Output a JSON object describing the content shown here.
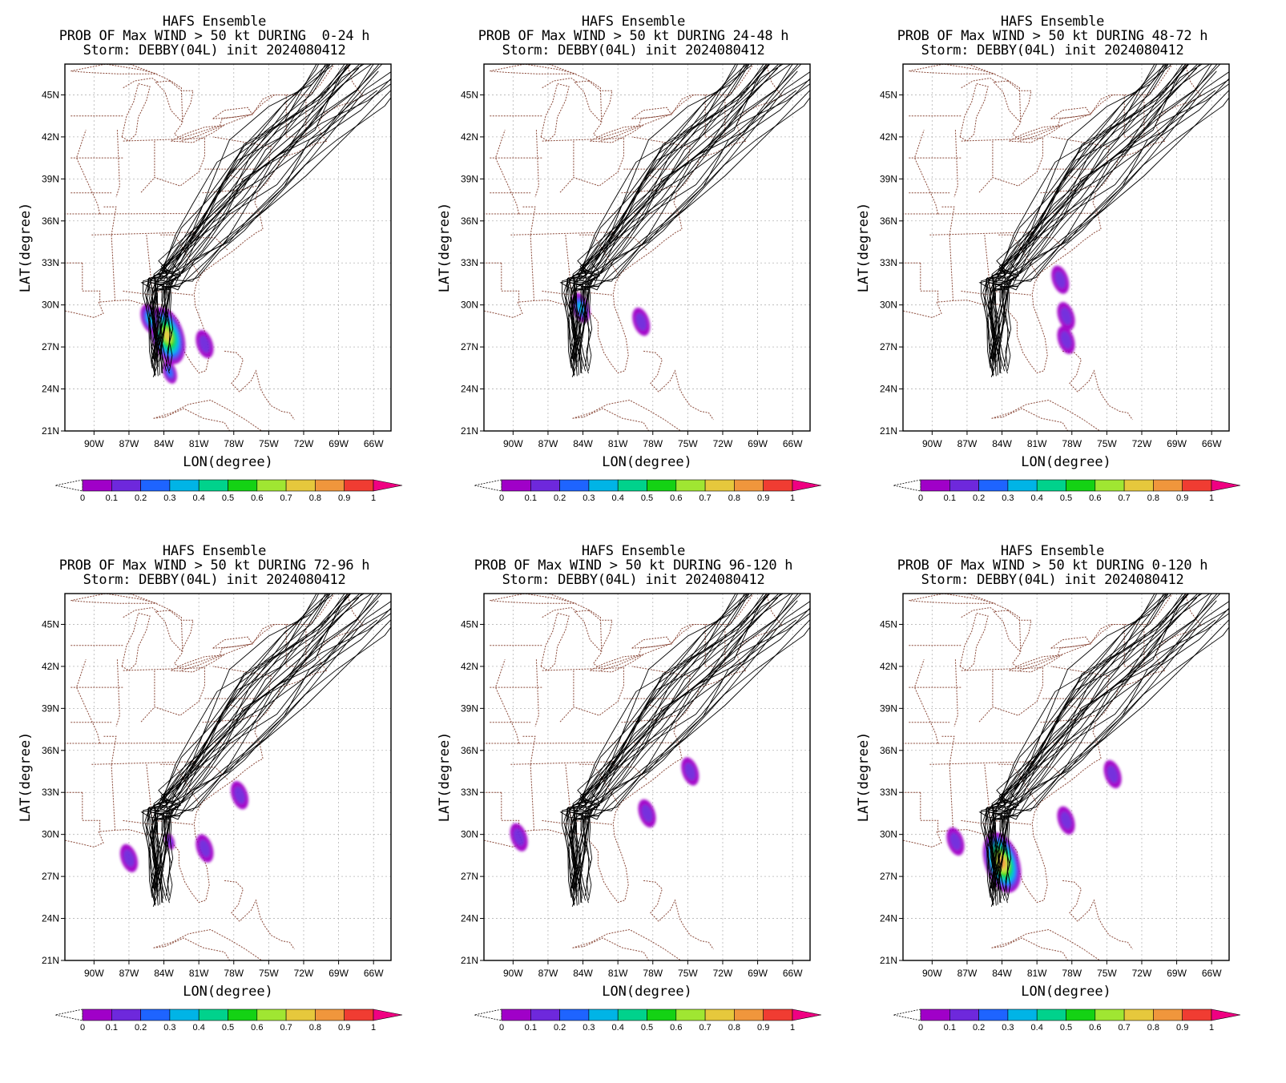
{
  "figure": {
    "xlabel": "LON(degree)",
    "ylabel": "LAT(degree)",
    "lat_labels": [
      "45N",
      "42N",
      "39N",
      "36N",
      "33N",
      "30N",
      "27N",
      "24N",
      "21N"
    ],
    "lon_labels": [
      "90W",
      "87W",
      "84W",
      "81W",
      "78W",
      "75W",
      "72W",
      "69W",
      "66W"
    ],
    "colorbar_ticks": [
      "0",
      "0.1",
      "0.2",
      "0.3",
      "0.4",
      "0.5",
      "0.6",
      "0.7",
      "0.8",
      "0.9",
      "1"
    ],
    "colorbar_colors": [
      "#a000c8",
      "#6e28dc",
      "#1e64ff",
      "#00b4e6",
      "#00d28c",
      "#14d214",
      "#a0e632",
      "#e6c83c",
      "#f0963c",
      "#f03c32",
      "#f00082"
    ]
  },
  "panels": [
    {
      "title1": "HAFS Ensemble",
      "title2": "PROB OF Max WIND > 50 kt DURING  0-24 h",
      "title3": "Storm: DEBBY(04L) init 2024080412"
    },
    {
      "title1": "HAFS Ensemble",
      "title2": "PROB OF Max WIND > 50 kt DURING 24-48 h",
      "title3": "Storm: DEBBY(04L) init 2024080412"
    },
    {
      "title1": "HAFS Ensemble",
      "title2": "PROB OF Max WIND > 50 kt DURING 48-72 h",
      "title3": "Storm: DEBBY(04L) init 2024080412"
    },
    {
      "title1": "HAFS Ensemble",
      "title2": "PROB OF Max WIND > 50 kt DURING 72-96 h",
      "title3": "Storm: DEBBY(04L) init 2024080412"
    },
    {
      "title1": "HAFS Ensemble",
      "title2": "PROB OF Max WIND > 50 kt DURING 96-120 h",
      "title3": "Storm: DEBBY(04L) init 2024080412"
    },
    {
      "title1": "HAFS Ensemble",
      "title2": "PROB OF Max WIND > 50 kt DURING 0-120 h",
      "title3": "Storm: DEBBY(04L) init 2024080412"
    }
  ],
  "chart_data": [
    {
      "type": "heatmap",
      "period": "0-24 h",
      "xlim": [
        -92.5,
        -64.5
      ],
      "ylim": [
        21,
        47.2
      ],
      "colorbar_range": [
        0,
        1
      ],
      "grid": true,
      "prob_areas": [
        {
          "lat": 27.8,
          "lon": -83.7,
          "max_prob": 0.7
        },
        {
          "lat": 29.0,
          "lon": -85.2,
          "max_prob": 0.3
        },
        {
          "lat": 25.2,
          "lon": -83.5,
          "max_prob": 0.2
        },
        {
          "lat": 27.2,
          "lon": -80.5,
          "max_prob": 0.05
        }
      ]
    },
    {
      "type": "heatmap",
      "period": "24-48 h",
      "xlim": [
        -92.5,
        -64.5
      ],
      "ylim": [
        21,
        47.2
      ],
      "colorbar_range": [
        0,
        1
      ],
      "grid": true,
      "prob_areas": [
        {
          "lat": 29.8,
          "lon": -84.2,
          "max_prob": 0.3
        },
        {
          "lat": 28.8,
          "lon": -79.0,
          "max_prob": 0.05
        }
      ]
    },
    {
      "type": "heatmap",
      "period": "48-72 h",
      "xlim": [
        -92.5,
        -64.5
      ],
      "ylim": [
        21,
        47.2
      ],
      "colorbar_range": [
        0,
        1
      ],
      "grid": true,
      "prob_areas": [
        {
          "lat": 31.8,
          "lon": -79.0,
          "max_prob": 0.05
        },
        {
          "lat": 29.2,
          "lon": -78.5,
          "max_prob": 0.05
        },
        {
          "lat": 27.5,
          "lon": -78.5,
          "max_prob": 0.05
        }
      ]
    },
    {
      "type": "heatmap",
      "period": "72-96 h",
      "xlim": [
        -92.5,
        -64.5
      ],
      "ylim": [
        21,
        47.2
      ],
      "colorbar_range": [
        0,
        1
      ],
      "grid": true,
      "prob_areas": [
        {
          "lat": 29.5,
          "lon": -83.5,
          "max_prob": 0.1
        },
        {
          "lat": 32.8,
          "lon": -77.5,
          "max_prob": 0.05
        },
        {
          "lat": 29.0,
          "lon": -80.5,
          "max_prob": 0.05
        },
        {
          "lat": 28.3,
          "lon": -87.0,
          "max_prob": 0.05
        }
      ]
    },
    {
      "type": "heatmap",
      "period": "96-120 h",
      "xlim": [
        -92.5,
        -64.5
      ],
      "ylim": [
        21,
        47.2
      ],
      "colorbar_range": [
        0,
        1
      ],
      "grid": true,
      "prob_areas": [
        {
          "lat": 34.5,
          "lon": -74.8,
          "max_prob": 0.05
        },
        {
          "lat": 31.5,
          "lon": -78.5,
          "max_prob": 0.05
        },
        {
          "lat": 29.8,
          "lon": -89.5,
          "max_prob": 0.05
        }
      ]
    },
    {
      "type": "heatmap",
      "period": "0-120 h",
      "xlim": [
        -92.5,
        -64.5
      ],
      "ylim": [
        21,
        47.2
      ],
      "colorbar_range": [
        0,
        1
      ],
      "grid": true,
      "prob_areas": [
        {
          "lat": 28.0,
          "lon": -84.0,
          "max_prob": 0.75
        },
        {
          "lat": 34.3,
          "lon": -74.5,
          "max_prob": 0.05
        },
        {
          "lat": 31.0,
          "lon": -78.5,
          "max_prob": 0.05
        },
        {
          "lat": 29.5,
          "lon": -88.0,
          "max_prob": 0.05
        }
      ]
    }
  ]
}
